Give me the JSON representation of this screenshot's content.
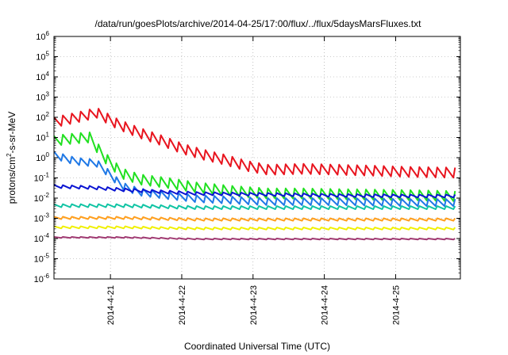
{
  "chart_data": {
    "type": "line",
    "title": "/data/run/goesPlots/archive/2014-04-25/17:00/flux/../flux/5daysMarsFluxes.txt",
    "xlabel": "Coordinated Universal Time (UTC)",
    "ylabel_main": "protons/cm",
    "ylabel_sup": "2",
    "ylabel_rest": "-s-sr-MeV",
    "y_scale": "log",
    "ylim": [
      1e-06,
      1000000.0
    ],
    "xlim": [
      0,
      5.7
    ],
    "x_unit": "days after 2014-04-20 05:00 UTC",
    "grid": true,
    "y_tick_base": "10",
    "y_tick_exponents": [
      "-6",
      "-5",
      "-4",
      "-3",
      "-2",
      "-1",
      "0",
      "1",
      "2",
      "3",
      "4",
      "5",
      "6"
    ],
    "x_tick_labels": [
      "2014-4-21",
      "2014-4-22",
      "2014-4-23",
      "2014-4-24",
      "2014-4-25"
    ],
    "x_tick_positions": [
      0.792,
      1.792,
      2.792,
      3.792,
      4.792
    ],
    "sawtooth_period_days": 0.125,
    "series": [
      {
        "color": "#e8141e",
        "x": [
          0,
          0.4,
          0.6,
          0.9,
          1.2,
          1.5,
          1.8,
          2.1,
          2.4,
          2.7,
          3.0,
          3.5,
          4.0,
          4.5,
          5.0,
          5.7
        ],
        "y": [
          100,
          200,
          300,
          80,
          30,
          13,
          5,
          2.5,
          1.4,
          0.7,
          0.45,
          0.5,
          0.45,
          0.4,
          0.35,
          0.32
        ],
        "drop": 0.5
      },
      {
        "color": "#20e020",
        "x": [
          0,
          0.2,
          0.5,
          0.7,
          0.95,
          1.2,
          1.6,
          2.0,
          2.5,
          3.0,
          3.5,
          4.0,
          5.0,
          5.7
        ],
        "y": [
          12,
          15,
          18,
          2,
          0.3,
          0.15,
          0.1,
          0.06,
          0.04,
          0.03,
          0.03,
          0.028,
          0.025,
          0.022
        ],
        "drop": 0.5
      },
      {
        "color": "#1f78e6",
        "x": [
          0,
          0.3,
          0.6,
          0.8,
          0.95,
          1.2,
          1.6,
          2.0,
          3.0,
          4.0,
          5.0,
          5.7
        ],
        "y": [
          2,
          1,
          0.8,
          0.2,
          0.06,
          0.03,
          0.02,
          0.014,
          0.01,
          0.01,
          0.009,
          0.009
        ],
        "drop": 0.35
      },
      {
        "color": "#0a14d2",
        "x": [
          0,
          0.5,
          1.0,
          2.0,
          3.0,
          4.0,
          5.0,
          5.7
        ],
        "y": [
          0.045,
          0.04,
          0.03,
          0.02,
          0.018,
          0.016,
          0.015,
          0.015
        ],
        "drop": 0.15
      },
      {
        "color": "#10c4a4",
        "x": [
          0,
          1.0,
          2.0,
          3.0,
          4.0,
          5.7
        ],
        "y": [
          0.005,
          0.005,
          0.004,
          0.004,
          0.004,
          0.004
        ],
        "drop": 0.15
      },
      {
        "color": "#ffa020",
        "x": [
          0,
          1.0,
          2.0,
          3.0,
          5.7
        ],
        "y": [
          0.0012,
          0.0012,
          0.001,
          0.001,
          0.001
        ],
        "drop": 0.12
      },
      {
        "color": "#f0f000",
        "x": [
          0,
          1.0,
          2.0,
          3.0,
          5.7
        ],
        "y": [
          0.0004,
          0.0004,
          0.00035,
          0.00035,
          0.00035
        ],
        "drop": 0.1
      },
      {
        "color": "#a03a72",
        "x": [
          0,
          1.0,
          2.0,
          3.0,
          5.7
        ],
        "y": [
          0.00012,
          0.00012,
          0.0001,
          0.0001,
          0.0001
        ],
        "drop": 0.05
      }
    ]
  }
}
